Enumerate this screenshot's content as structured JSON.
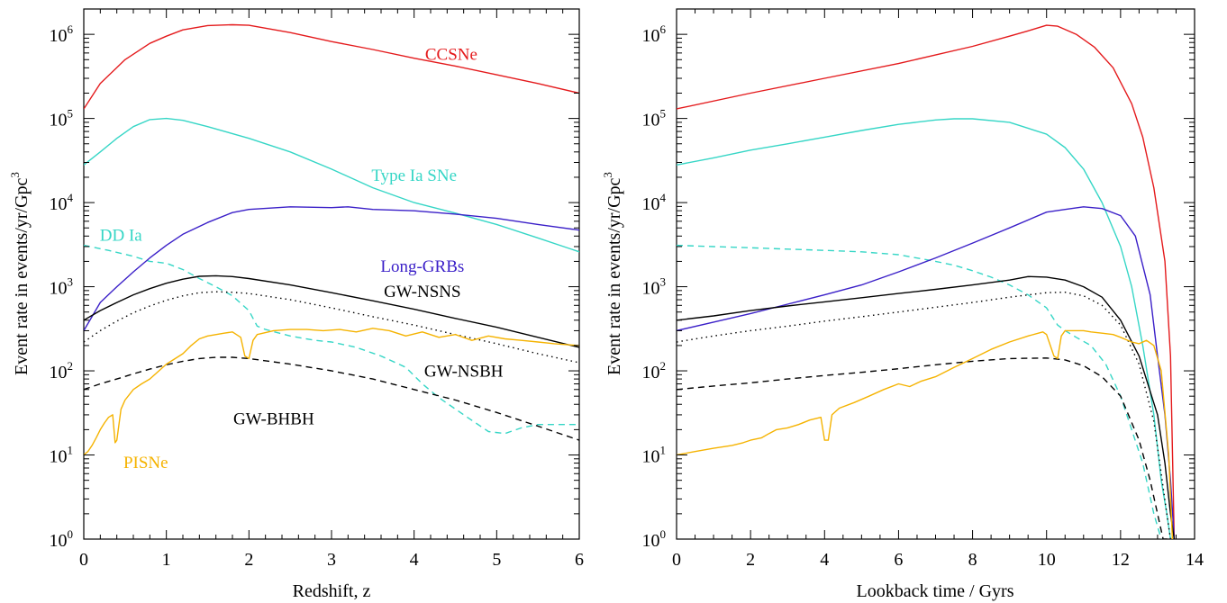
{
  "chart_data": [
    {
      "type": "line",
      "xlabel": "Redshift, z",
      "ylabel": "Event rate in events/yr/Gpc",
      "ylabel_sup": "3",
      "xlim": [
        0,
        6
      ],
      "ylim": [
        1,
        2000000
      ],
      "yscale": "log",
      "grid": false,
      "xticks": [
        0,
        1,
        2,
        3,
        4,
        5,
        6
      ],
      "yticks": [
        1,
        10,
        100,
        1000,
        10000,
        100000,
        1000000
      ],
      "ytick_labels": [
        {
          "base": "10",
          "exp": "0"
        },
        {
          "base": "10",
          "exp": "1"
        },
        {
          "base": "10",
          "exp": "2"
        },
        {
          "base": "10",
          "exp": "3"
        },
        {
          "base": "10",
          "exp": "4"
        },
        {
          "base": "10",
          "exp": "5"
        },
        {
          "base": "10",
          "exp": "6"
        }
      ],
      "annotations": [
        {
          "text": "CCSNe",
          "x": 4.45,
          "y": 500000,
          "color": "#e41a1c"
        },
        {
          "text": "Type Ia SNe",
          "x": 4.0,
          "y": 18000,
          "color": "#36d6c6"
        },
        {
          "text": "DD Ia",
          "x": 0.45,
          "y": 3500,
          "color": "#36d6c6"
        },
        {
          "text": "Long-GRBs",
          "x": 4.1,
          "y": 1500,
          "color": "#3a1fc8"
        },
        {
          "text": "GW-NSNS",
          "x": 4.1,
          "y": 750,
          "color": "#000000"
        },
        {
          "text": "GW-NSBH",
          "x": 4.6,
          "y": 85,
          "color": "#000000"
        },
        {
          "text": "GW-BHBH",
          "x": 2.3,
          "y": 23,
          "color": "#000000"
        },
        {
          "text": "PISNe",
          "x": 0.75,
          "y": 7,
          "color": "#f5b301"
        }
      ],
      "series": [
        {
          "key": "ccsne",
          "color": "#e41a1c",
          "dash": "solid",
          "x": [
            0,
            0.2,
            0.5,
            0.8,
            1.0,
            1.2,
            1.5,
            1.8,
            2.0,
            2.5,
            3.0,
            3.5,
            4.0,
            4.5,
            5.0,
            5.5,
            6.0
          ],
          "y": [
            130000,
            260000,
            500000,
            780000,
            950000,
            1130000,
            1270000,
            1300000,
            1280000,
            1050000,
            820000,
            660000,
            520000,
            420000,
            330000,
            260000,
            200000
          ]
        },
        {
          "key": "type_ia",
          "color": "#36d6c6",
          "dash": "solid",
          "x": [
            0,
            0.2,
            0.4,
            0.6,
            0.8,
            1.0,
            1.2,
            1.5,
            2.0,
            2.5,
            3.0,
            3.5,
            4.0,
            4.5,
            5.0,
            5.5,
            6.0
          ],
          "y": [
            28000,
            40000,
            58000,
            80000,
            97000,
            100000,
            95000,
            80000,
            58000,
            40000,
            25000,
            15000,
            10000,
            7500,
            5500,
            3800,
            2600
          ]
        },
        {
          "key": "dd_ia",
          "color": "#36d6c6",
          "dash": "dashed",
          "x": [
            0,
            0.3,
            0.6,
            0.8,
            1.0,
            1.2,
            1.4,
            1.6,
            1.8,
            2.0,
            2.1,
            2.2,
            2.5,
            2.8,
            3.0,
            3.3,
            3.6,
            3.9,
            4.1,
            4.3,
            4.6,
            4.9,
            5.1,
            5.3,
            5.5,
            6.0
          ],
          "y": [
            3100,
            2700,
            2300,
            2000,
            1900,
            1600,
            1250,
            1000,
            780,
            520,
            340,
            310,
            260,
            230,
            220,
            190,
            150,
            110,
            70,
            48,
            30,
            19,
            18,
            21,
            23,
            23
          ]
        },
        {
          "key": "long_grbs",
          "color": "#3a1fc8",
          "dash": "solid",
          "x": [
            0,
            0.2,
            0.4,
            0.6,
            0.8,
            1.0,
            1.2,
            1.5,
            1.8,
            2.0,
            2.5,
            3.0,
            3.2,
            3.5,
            4.0,
            4.5,
            5.0,
            5.5,
            6.0
          ],
          "y": [
            300,
            650,
            1000,
            1500,
            2200,
            3100,
            4200,
            5800,
            7600,
            8300,
            8900,
            8700,
            8900,
            8300,
            8000,
            7300,
            6500,
            5500,
            4700
          ]
        },
        {
          "key": "gw_nsns",
          "color": "#000000",
          "dash": "solid",
          "x": [
            0,
            0.2,
            0.4,
            0.6,
            0.8,
            1.0,
            1.2,
            1.4,
            1.6,
            1.8,
            2.0,
            2.5,
            3.0,
            3.5,
            4.0,
            4.5,
            5.0,
            5.5,
            6.0
          ],
          "y": [
            400,
            520,
            650,
            800,
            950,
            1100,
            1230,
            1330,
            1350,
            1320,
            1250,
            1050,
            850,
            680,
            540,
            420,
            330,
            250,
            190
          ]
        },
        {
          "key": "gw_nsbh",
          "color": "#000000",
          "dash": "dotted",
          "x": [
            0,
            0.2,
            0.4,
            0.6,
            0.8,
            1.0,
            1.2,
            1.4,
            1.6,
            1.8,
            2.0,
            2.5,
            3.0,
            3.5,
            4.0,
            4.5,
            5.0,
            5.5,
            6.0
          ],
          "y": [
            220,
            300,
            390,
            490,
            590,
            690,
            780,
            850,
            870,
            860,
            830,
            700,
            560,
            440,
            350,
            270,
            210,
            160,
            125
          ]
        },
        {
          "key": "gw_bhbh",
          "color": "#000000",
          "dash": "dashed",
          "x": [
            0,
            0.2,
            0.4,
            0.6,
            0.8,
            1.0,
            1.2,
            1.4,
            1.6,
            1.8,
            2.0,
            2.5,
            3.0,
            3.5,
            4.0,
            4.5,
            5.0,
            5.5,
            6.0
          ],
          "y": [
            60,
            70,
            80,
            92,
            105,
            118,
            130,
            140,
            145,
            145,
            140,
            120,
            100,
            80,
            60,
            45,
            32,
            22,
            15
          ]
        },
        {
          "key": "pisne",
          "color": "#f5b301",
          "dash": "solid",
          "x": [
            0,
            0.05,
            0.1,
            0.15,
            0.2,
            0.25,
            0.3,
            0.35,
            0.38,
            0.4,
            0.45,
            0.5,
            0.6,
            0.7,
            0.8,
            1.0,
            1.2,
            1.3,
            1.4,
            1.5,
            1.7,
            1.8,
            1.9,
            1.95,
            2.0,
            2.05,
            2.1,
            2.3,
            2.5,
            2.7,
            2.9,
            3.1,
            3.3,
            3.5,
            3.7,
            3.9,
            4.1,
            4.3,
            4.5,
            4.7,
            4.9,
            5.1,
            5.3,
            5.5,
            5.7,
            6.0
          ],
          "y": [
            10,
            11,
            13,
            16,
            20,
            24,
            28,
            30,
            14,
            15,
            35,
            45,
            60,
            70,
            80,
            120,
            160,
            200,
            240,
            260,
            280,
            290,
            250,
            150,
            140,
            230,
            270,
            300,
            310,
            310,
            300,
            310,
            290,
            320,
            300,
            260,
            290,
            250,
            270,
            230,
            260,
            240,
            230,
            220,
            210,
            200
          ]
        }
      ]
    },
    {
      "type": "line",
      "xlabel": "Lookback time / Gyrs",
      "ylabel": "Event rate in events/yr/Gpc",
      "ylabel_sup": "3",
      "xlim": [
        0,
        14
      ],
      "ylim": [
        1,
        2000000
      ],
      "yscale": "log",
      "grid": false,
      "xticks": [
        0,
        2,
        4,
        6,
        8,
        10,
        12,
        14
      ],
      "yticks": [
        1,
        10,
        100,
        1000,
        10000,
        100000,
        1000000
      ],
      "ytick_labels": [
        {
          "base": "10",
          "exp": "0"
        },
        {
          "base": "10",
          "exp": "1"
        },
        {
          "base": "10",
          "exp": "2"
        },
        {
          "base": "10",
          "exp": "3"
        },
        {
          "base": "10",
          "exp": "4"
        },
        {
          "base": "10",
          "exp": "5"
        },
        {
          "base": "10",
          "exp": "6"
        }
      ],
      "series": [
        {
          "key": "ccsne",
          "color": "#e41a1c",
          "dash": "solid",
          "x": [
            0,
            2,
            4,
            6,
            8,
            9,
            9.5,
            10.0,
            10.3,
            10.8,
            11.3,
            11.8,
            12.3,
            12.6,
            12.9,
            13.2,
            13.35,
            13.45
          ],
          "y": [
            130000,
            200000,
            300000,
            450000,
            720000,
            950000,
            1100000,
            1280000,
            1250000,
            1000000,
            700000,
            400000,
            150000,
            60000,
            15000,
            2000,
            150,
            1
          ]
        },
        {
          "key": "type_ia",
          "color": "#36d6c6",
          "dash": "solid",
          "x": [
            0,
            1,
            2,
            3,
            4,
            5,
            6,
            7,
            7.5,
            8,
            9,
            10,
            10.5,
            11,
            11.5,
            12,
            12.3,
            12.6,
            12.9,
            13.1,
            13.25,
            13.35
          ],
          "y": [
            28000,
            34000,
            42000,
            50000,
            60000,
            72000,
            85000,
            96000,
            99000,
            99000,
            90000,
            65000,
            45000,
            25000,
            10000,
            3000,
            1000,
            200,
            30,
            5,
            2,
            1
          ]
        },
        {
          "key": "dd_ia",
          "color": "#36d6c6",
          "dash": "dashed",
          "x": [
            0,
            1,
            2,
            3,
            4,
            5,
            6,
            7,
            7.5,
            8,
            8.5,
            9,
            9.5,
            10,
            10.3,
            10.5,
            10.8,
            11.2,
            11.6,
            12.0,
            12.3,
            12.6,
            12.9,
            13.1
          ],
          "y": [
            3100,
            3000,
            2900,
            2800,
            2700,
            2600,
            2400,
            2000,
            1800,
            1550,
            1300,
            1050,
            800,
            560,
            350,
            300,
            250,
            200,
            120,
            50,
            20,
            8,
            2,
            1
          ]
        },
        {
          "key": "long_grbs",
          "color": "#3a1fc8",
          "dash": "solid",
          "x": [
            0,
            1,
            2,
            3,
            4,
            5,
            6,
            7,
            8,
            9,
            10,
            10.5,
            11,
            11.5,
            12,
            12.4,
            12.8,
            13.0,
            13.2,
            13.35,
            13.45
          ],
          "y": [
            300,
            380,
            480,
            620,
            800,
            1050,
            1500,
            2200,
            3300,
            5000,
            7700,
            8300,
            8900,
            8500,
            7000,
            4000,
            800,
            150,
            30,
            5,
            1
          ]
        },
        {
          "key": "gw_nsns",
          "color": "#000000",
          "dash": "solid",
          "x": [
            0,
            1,
            2,
            3,
            4,
            5,
            6,
            7,
            8,
            9,
            9.5,
            10,
            10.5,
            11,
            11.5,
            12,
            12.5,
            13.0,
            13.2,
            13.35,
            13.45
          ],
          "y": [
            400,
            450,
            520,
            590,
            660,
            740,
            830,
            930,
            1050,
            1200,
            1320,
            1300,
            1200,
            1000,
            750,
            400,
            150,
            30,
            8,
            2,
            1
          ]
        },
        {
          "key": "gw_nsbh",
          "color": "#000000",
          "dash": "dotted",
          "x": [
            0,
            1,
            2,
            3,
            4,
            5,
            6,
            7,
            8,
            9,
            10,
            10.5,
            11,
            11.5,
            12,
            12.5,
            12.9,
            13.1,
            13.25,
            13.35
          ],
          "y": [
            220,
            260,
            300,
            340,
            390,
            440,
            500,
            570,
            650,
            750,
            850,
            860,
            780,
            600,
            350,
            120,
            25,
            6,
            2,
            1
          ]
        },
        {
          "key": "gw_bhbh",
          "color": "#000000",
          "dash": "dashed",
          "x": [
            0,
            1,
            2,
            3,
            4,
            5,
            6,
            7,
            8,
            9,
            10,
            10.5,
            11,
            11.5,
            12,
            12.5,
            12.8,
            13.0,
            13.15,
            13.3
          ],
          "y": [
            60,
            66,
            72,
            80,
            88,
            96,
            106,
            118,
            130,
            140,
            142,
            135,
            115,
            85,
            50,
            15,
            5,
            2,
            1,
            1
          ]
        },
        {
          "key": "pisne",
          "color": "#f5b301",
          "dash": "solid",
          "x": [
            0,
            0.5,
            1.0,
            1.5,
            1.8,
            2.0,
            2.3,
            2.5,
            2.7,
            3.0,
            3.3,
            3.6,
            3.9,
            4.0,
            4.1,
            4.2,
            4.4,
            4.8,
            5.2,
            5.6,
            6.0,
            6.3,
            6.6,
            7.0,
            7.5,
            8.0,
            8.5,
            9.0,
            9.5,
            9.9,
            10.0,
            10.2,
            10.3,
            10.4,
            10.5,
            10.8,
            11.0,
            11.2,
            11.5,
            11.8,
            12.0,
            12.3,
            12.5,
            12.7,
            12.9,
            13.1,
            13.3,
            13.4
          ],
          "y": [
            10,
            11,
            12,
            13,
            14,
            15,
            16,
            18,
            20,
            21,
            23,
            26,
            28,
            15,
            15,
            30,
            36,
            42,
            50,
            60,
            70,
            65,
            75,
            85,
            110,
            140,
            180,
            220,
            260,
            290,
            270,
            150,
            140,
            260,
            300,
            300,
            300,
            290,
            280,
            270,
            250,
            220,
            210,
            230,
            200,
            100,
            10,
            1
          ]
        }
      ]
    }
  ]
}
